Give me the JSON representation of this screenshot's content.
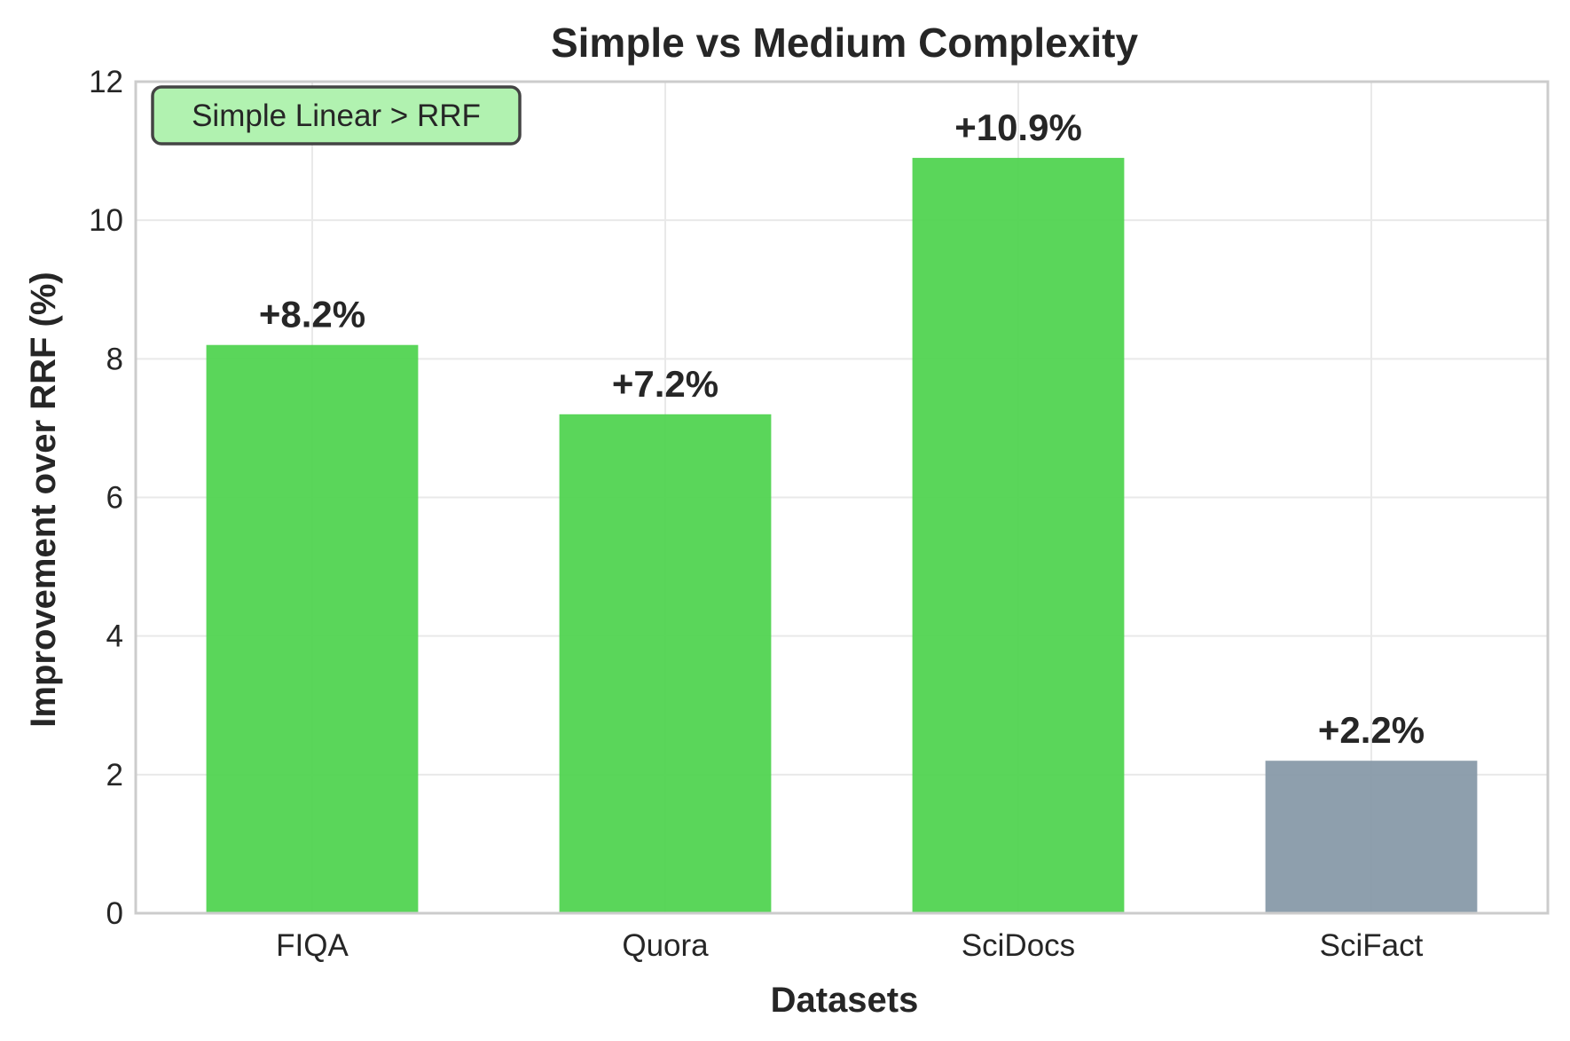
{
  "chart_data": {
    "type": "bar",
    "title": "Simple vs Medium Complexity",
    "xlabel": "Datasets",
    "ylabel": "Improvement over RRF (%)",
    "categories": [
      "FIQA",
      "Quora",
      "SciDocs",
      "SciFact"
    ],
    "values": [
      8.2,
      7.2,
      10.9,
      2.2
    ],
    "value_labels": [
      "+8.2%",
      "+7.2%",
      "+10.9%",
      "+2.2%"
    ],
    "bar_colors": [
      "#4cd24c",
      "#4cd24c",
      "#4cd24c",
      "#8497a6"
    ],
    "ylim": [
      0,
      12
    ],
    "yticks": [
      0,
      2,
      4,
      6,
      8,
      10,
      12
    ],
    "grid": true,
    "annotation": {
      "text": "Simple Linear > RRF",
      "placement": "top-left",
      "background_color": "#b1f2b0",
      "border_color": "#444444"
    }
  },
  "colors": {
    "grid": "#e9e9e9",
    "spine": "#cccccc",
    "text": "#262626"
  }
}
